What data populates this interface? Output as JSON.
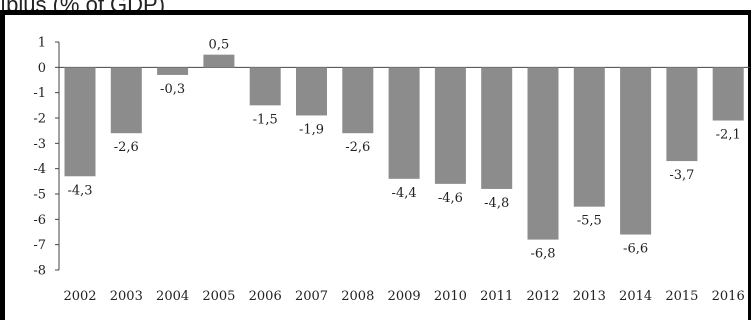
{
  "chart_data": {
    "type": "bar",
    "title": "ıplus (% of GDP)",
    "xlabel": "",
    "ylabel": "",
    "ylim": [
      -8,
      1
    ],
    "yticks": [
      "1",
      "0",
      "-1",
      "-2",
      "-3",
      "-4",
      "-5",
      "-6",
      "-7",
      "-8"
    ],
    "grid": false,
    "bar_color": "#8c8c8c",
    "categories": [
      "2002",
      "2003",
      "2004",
      "2005",
      "2006",
      "2007",
      "2008",
      "2009",
      "2010",
      "2011",
      "2012",
      "2013",
      "2014",
      "2015",
      "2016"
    ],
    "values": [
      -4.3,
      -2.6,
      -0.3,
      0.5,
      -1.5,
      -1.9,
      -2.6,
      -4.4,
      -4.6,
      -4.8,
      -6.8,
      -5.5,
      -6.6,
      -3.7,
      -2.1
    ],
    "data_labels": [
      "-4,3",
      "-2,6",
      "-0,3",
      "0,5",
      "-1,5",
      "-1,9",
      "-2,6",
      "-4,4",
      "-4,6",
      "-4,8",
      "-6,8",
      "-5,5",
      "-6,6",
      "-3,7",
      "-2,1"
    ]
  }
}
